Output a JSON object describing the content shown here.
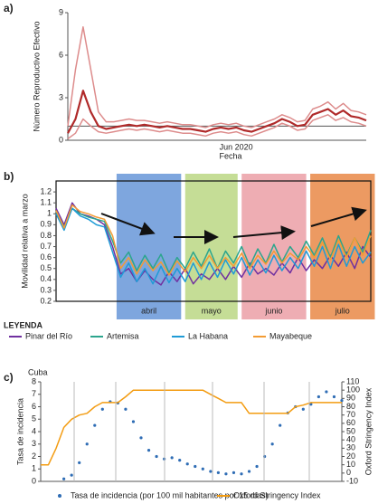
{
  "chart_data": [
    {
      "panel": "a)",
      "type": "line",
      "ylabel": "Número Reproductivo Efectivo",
      "xlabel": "Fecha",
      "categories": [
        null,
        null,
        null,
        null,
        null,
        null,
        null,
        null,
        null,
        null,
        null,
        null,
        null,
        null,
        null,
        null,
        null,
        null,
        null,
        null,
        null,
        null,
        "Jun 2020",
        null,
        null,
        null,
        null,
        null,
        null,
        null,
        null,
        null,
        null,
        null,
        null,
        null,
        null,
        null,
        null,
        null
      ],
      "ylim": [
        0,
        9
      ],
      "yticks": [
        0,
        3,
        6,
        9
      ],
      "hline": 1,
      "series": [
        {
          "color": "#b02a2a",
          "values": [
            0.5,
            1.5,
            3.5,
            2.0,
            1.0,
            0.8,
            0.9,
            1.0,
            1.1,
            1.0,
            1.1,
            1.0,
            0.9,
            1.0,
            0.9,
            0.8,
            0.8,
            0.7,
            0.6,
            0.8,
            0.9,
            0.8,
            0.9,
            0.7,
            0.6,
            0.8,
            1.0,
            1.2,
            1.5,
            1.3,
            1.0,
            1.1,
            1.8,
            2.0,
            2.2,
            1.8,
            2.1,
            1.7,
            1.6,
            1.4
          ]
        },
        {
          "color": "#dd8c8c",
          "values": [
            1.0,
            5,
            8,
            5,
            2,
            1.3,
            1.3,
            1.4,
            1.5,
            1.4,
            1.4,
            1.3,
            1.2,
            1.3,
            1.2,
            1.1,
            1.1,
            1.0,
            0.9,
            1.1,
            1.2,
            1.1,
            1.2,
            1.0,
            0.9,
            1.1,
            1.3,
            1.5,
            1.8,
            1.6,
            1.3,
            1.4,
            2.2,
            2.4,
            2.7,
            2.2,
            2.6,
            2.1,
            2.0,
            1.8
          ]
        },
        {
          "color": "#dd8c8c",
          "values": [
            0.1,
            0.5,
            1.5,
            1.0,
            0.6,
            0.5,
            0.6,
            0.7,
            0.8,
            0.7,
            0.8,
            0.7,
            0.6,
            0.7,
            0.6,
            0.5,
            0.5,
            0.4,
            0.3,
            0.5,
            0.6,
            0.5,
            0.6,
            0.4,
            0.3,
            0.5,
            0.7,
            0.9,
            1.2,
            1.0,
            0.7,
            0.8,
            1.4,
            1.6,
            1.8,
            1.4,
            1.6,
            1.3,
            1.2,
            1.0
          ]
        }
      ]
    },
    {
      "panel": "b)",
      "type": "line",
      "ylabel": "Movilidad relativa a marzo",
      "ylim": [
        0.2,
        1.3
      ],
      "yticks": [
        0.2,
        0.3,
        0.4,
        0.5,
        0.6,
        0.7,
        0.8,
        0.9,
        1.0,
        1.1,
        1.2
      ],
      "periods": [
        {
          "label": "abril",
          "start": 7.5,
          "end": 15.5,
          "color": "#7ea6de"
        },
        {
          "label": "mayo",
          "start": 16,
          "end": 22.5,
          "color": "#c5dd96"
        },
        {
          "label": "junio",
          "start": 23,
          "end": 31,
          "color": "#eeadb3"
        },
        {
          "label": "julio",
          "start": 31.5,
          "end": 39.5,
          "color": "#ec9a62"
        }
      ],
      "legend_title": "LEYENDA",
      "series": [
        {
          "name": "Pinar del Río",
          "color": "#7030a0",
          "values": [
            1.05,
            0.9,
            1.1,
            1.0,
            0.98,
            0.95,
            0.9,
            0.7,
            0.45,
            0.5,
            0.38,
            0.48,
            0.4,
            0.35,
            0.47,
            0.38,
            0.5,
            0.36,
            0.45,
            0.4,
            0.5,
            0.4,
            0.52,
            0.42,
            0.55,
            0.45,
            0.5,
            0.44,
            0.55,
            0.46,
            0.6,
            0.48,
            0.58,
            0.5,
            0.62,
            0.52,
            0.65,
            0.5,
            0.7,
            0.6
          ]
        },
        {
          "name": "Artemisa",
          "color": "#2ca58d",
          "values": [
            1.02,
            0.88,
            1.05,
            1.0,
            0.97,
            0.95,
            0.93,
            0.75,
            0.55,
            0.65,
            0.48,
            0.62,
            0.5,
            0.63,
            0.46,
            0.6,
            0.5,
            0.65,
            0.52,
            0.68,
            0.5,
            0.66,
            0.55,
            0.7,
            0.52,
            0.68,
            0.55,
            0.72,
            0.56,
            0.7,
            0.6,
            0.75,
            0.62,
            0.78,
            0.6,
            0.8,
            0.62,
            0.78,
            0.65,
            0.85
          ]
        },
        {
          "name": "La Habana",
          "color": "#1f9bd6",
          "values": [
            1.0,
            0.85,
            1.05,
            0.98,
            0.95,
            0.9,
            0.88,
            0.65,
            0.42,
            0.55,
            0.38,
            0.5,
            0.36,
            0.52,
            0.37,
            0.5,
            0.38,
            0.55,
            0.4,
            0.56,
            0.42,
            0.58,
            0.45,
            0.6,
            0.44,
            0.58,
            0.46,
            0.62,
            0.48,
            0.6,
            0.5,
            0.66,
            0.52,
            0.7,
            0.5,
            0.72,
            0.52,
            0.7,
            0.55,
            0.65
          ]
        },
        {
          "name": "Mayabeque",
          "color": "#f39c34",
          "values": [
            1.03,
            0.87,
            1.08,
            1.02,
            1.0,
            0.97,
            0.95,
            0.8,
            0.5,
            0.6,
            0.45,
            0.58,
            0.48,
            0.56,
            0.44,
            0.57,
            0.47,
            0.6,
            0.5,
            0.62,
            0.5,
            0.6,
            0.52,
            0.64,
            0.5,
            0.62,
            0.54,
            0.66,
            0.55,
            0.64,
            0.58,
            0.7,
            0.6,
            0.74,
            0.58,
            0.76,
            0.6,
            0.78,
            0.62,
            0.8
          ]
        }
      ]
    },
    {
      "panel": "c)",
      "type": "line",
      "title": "Cuba",
      "ylabel": "Tasa de incidencia",
      "y2label": "Oxford Stringency Index",
      "ylim": [
        0,
        8
      ],
      "yticks": [
        0,
        1,
        2,
        3,
        4,
        5,
        6,
        7,
        8
      ],
      "y2lim": [
        -10,
        110
      ],
      "y2ticks": [
        -10,
        0,
        10,
        20,
        30,
        40,
        50,
        60,
        70,
        80,
        90,
        100,
        110
      ],
      "series": [
        {
          "name": "Tasa de incidencia (por 100 mil habitantes por 15 días)",
          "color": "#2f6db5",
          "style": "dots",
          "values": [
            null,
            null,
            null,
            0.2,
            0.5,
            1.5,
            3,
            4.5,
            5.8,
            6.4,
            6.3,
            5.8,
            4.8,
            3.5,
            2.5,
            2.0,
            1.8,
            1.9,
            1.7,
            1.4,
            1.2,
            1.0,
            0.8,
            0.7,
            0.6,
            0.7,
            0.6,
            0.8,
            1.2,
            2.0,
            3.0,
            4.5,
            5.5,
            6.0,
            5.8,
            6.2,
            6.8,
            7.2,
            6.8,
            6.5
          ]
        },
        {
          "name": "Oxford Stringency Index",
          "color": "#f39c12",
          "axis": "y2",
          "values": [
            10,
            10,
            30,
            55,
            65,
            70,
            72,
            80,
            85,
            85,
            85,
            92,
            100,
            100,
            100,
            100,
            100,
            100,
            100,
            100,
            100,
            100,
            95,
            90,
            85,
            85,
            85,
            72,
            72,
            72,
            72,
            72,
            72,
            80,
            82,
            85,
            85,
            85,
            85,
            85
          ]
        }
      ]
    }
  ]
}
